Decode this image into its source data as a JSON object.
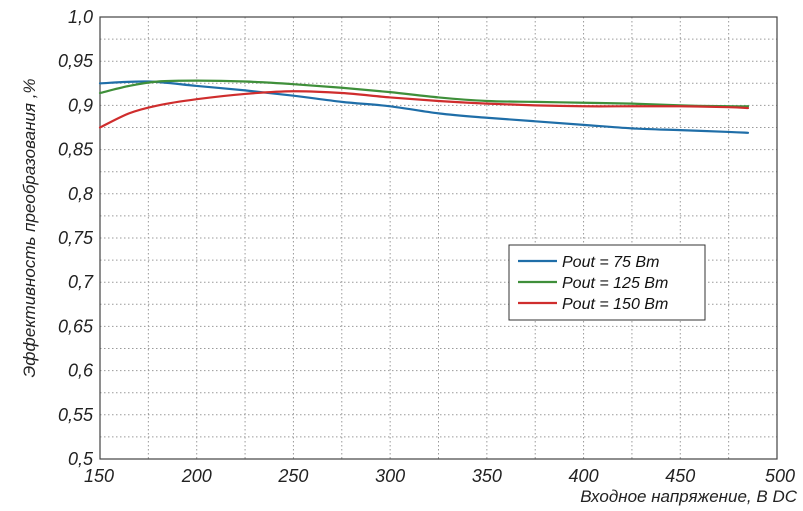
{
  "chart_data": {
    "type": "line",
    "title": "",
    "xlabel": "Входное напряжение, В DC",
    "ylabel": "Эффективность преобразования ,%",
    "xlim": [
      150,
      500
    ],
    "ylim": [
      0.5,
      1.0
    ],
    "x_ticks": [
      "150",
      "200",
      "250",
      "300",
      "350",
      "400",
      "450",
      "500"
    ],
    "y_ticks": [
      "0,5",
      "0,55",
      "0,6",
      "0,65",
      "0,7",
      "0,75",
      "0,8",
      "0,85",
      "0,9",
      "0,95",
      "1,0"
    ],
    "grid": true,
    "legend_position": "right",
    "series": [
      {
        "name": "Pout = 75 Вт",
        "color": "#1f6ea8",
        "x": [
          150,
          175,
          200,
          225,
          250,
          275,
          300,
          325,
          350,
          375,
          400,
          425,
          450,
          475,
          485
        ],
        "y": [
          0.925,
          0.927,
          0.922,
          0.917,
          0.911,
          0.904,
          0.899,
          0.891,
          0.886,
          0.882,
          0.878,
          0.874,
          0.872,
          0.87,
          0.869
        ]
      },
      {
        "name": "Pout = 125 Вт",
        "color": "#3f8f3a",
        "x": [
          150,
          165,
          180,
          200,
          225,
          250,
          275,
          300,
          325,
          350,
          375,
          400,
          425,
          450,
          475,
          485
        ],
        "y": [
          0.914,
          0.922,
          0.927,
          0.928,
          0.927,
          0.924,
          0.92,
          0.915,
          0.909,
          0.905,
          0.904,
          0.903,
          0.902,
          0.9,
          0.899,
          0.899
        ]
      },
      {
        "name": "Pout = 150 Вт",
        "color": "#cf2d2d",
        "x": [
          150,
          165,
          180,
          200,
          225,
          250,
          275,
          300,
          325,
          350,
          375,
          400,
          425,
          450,
          475,
          485
        ],
        "y": [
          0.875,
          0.891,
          0.9,
          0.907,
          0.913,
          0.916,
          0.914,
          0.909,
          0.905,
          0.902,
          0.9,
          0.899,
          0.899,
          0.899,
          0.898,
          0.897
        ]
      }
    ]
  }
}
